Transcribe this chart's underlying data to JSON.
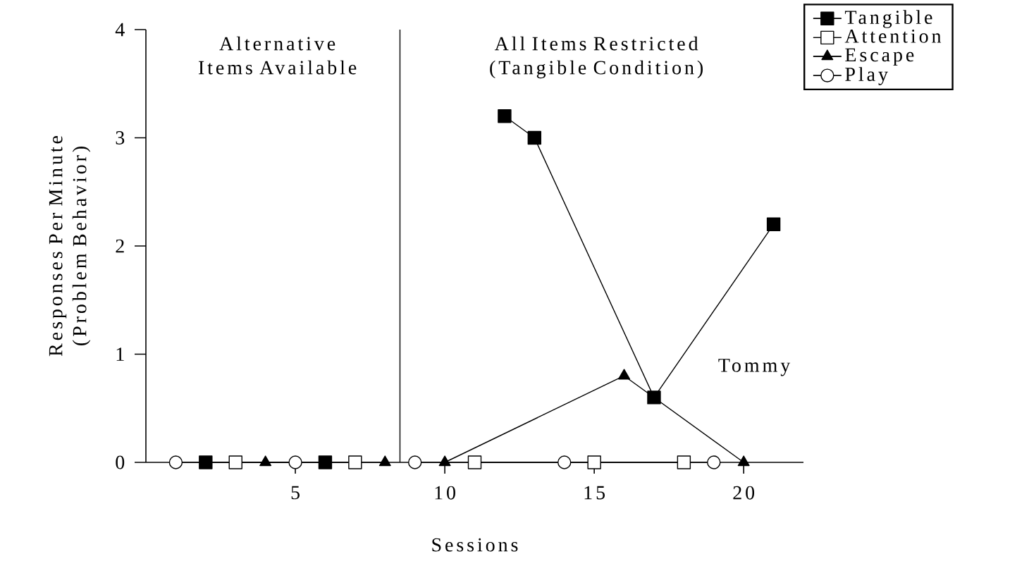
{
  "chart_data": {
    "type": "line",
    "xlabel": "Sessions",
    "ylabel": "Responses Per Minute (Problem Behavior)",
    "xlim": [
      0,
      22
    ],
    "ylim": [
      0,
      4
    ],
    "xticks": [
      5,
      10,
      15,
      20
    ],
    "yticks": [
      0,
      1,
      2,
      3,
      4
    ],
    "grid": false,
    "legend": "top right",
    "line_style": "solid",
    "series": [
      {
        "name": "Tangible",
        "color": "#000000",
        "marker": "square",
        "x": [
          2,
          6
        ],
        "values": [
          0,
          0
        ]
      },
      {
        "name": "Attention",
        "color": "#ffffff",
        "marker": "square",
        "x": [
          3,
          7
        ],
        "values": [
          0,
          0
        ]
      },
      {
        "name": "Escape",
        "color": "#000000",
        "marker": "triangle",
        "x": [
          4,
          8
        ],
        "values": [
          0,
          0
        ]
      },
      {
        "name": "Play",
        "color": "#ffffff",
        "marker": "circle",
        "x": [
          1,
          5
        ],
        "values": [
          0,
          0
        ]
      },
      {
        "color": "#000000",
        "marker": "square",
        "x": [
          12,
          13,
          17,
          21
        ],
        "values": [
          3.2,
          3.0,
          0.6,
          2.2
        ]
      },
      {
        "color": "#ffffff",
        "marker": "square",
        "x": [
          11,
          15,
          18
        ],
        "values": [
          0,
          0,
          0
        ]
      },
      {
        "color": "#000000",
        "marker": "triangle",
        "x": [
          10,
          16,
          20
        ],
        "values": [
          0,
          0.8,
          0
        ]
      },
      {
        "color": "#ffffff",
        "marker": "circle",
        "x": [
          9,
          14,
          19
        ],
        "values": [
          0,
          0,
          0
        ]
      }
    ],
    "ref_lines": [
      {
        "axis": "x",
        "value": 8.5
      }
    ],
    "annotations": [
      "Alternative Items Available",
      "All Items Restricted (Tangible Condition)",
      "Tommy"
    ]
  }
}
